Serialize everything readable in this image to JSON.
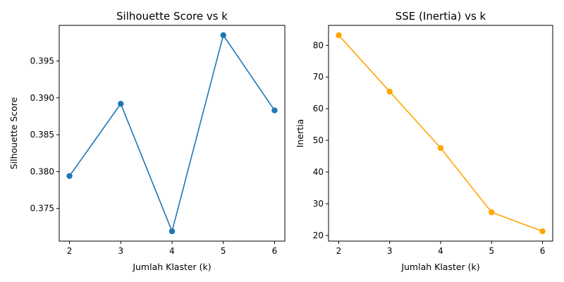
{
  "chart_data": [
    {
      "type": "line",
      "title": "Silhouette Score vs k",
      "xlabel": "Jumlah Klaster (k)",
      "ylabel": "Silhouette Score",
      "x": [
        2,
        3,
        4,
        5,
        6
      ],
      "series": [
        {
          "values": [
            0.3794,
            0.3892,
            0.3719,
            0.3985,
            0.3883
          ],
          "color": "#1f77b4",
          "marker": "circle"
        }
      ],
      "xlim": [
        1.8,
        6.2
      ],
      "ylim": [
        0.37057,
        0.39983
      ],
      "xticks": [
        2,
        3,
        4,
        5,
        6
      ],
      "xtick_labels": [
        "2",
        "3",
        "4",
        "5",
        "6"
      ],
      "yticks": [
        0.375,
        0.38,
        0.385,
        0.39,
        0.395
      ],
      "ytick_labels": [
        "0.375",
        "0.380",
        "0.385",
        "0.390",
        "0.395"
      ],
      "grid": false,
      "legend": "none"
    },
    {
      "type": "line",
      "title": "SSE (Inertia) vs k",
      "xlabel": "Jumlah Klaster (k)",
      "ylabel": "Inertia",
      "x": [
        2,
        3,
        4,
        5,
        6
      ],
      "series": [
        {
          "values": [
            83.2,
            65.4,
            47.6,
            27.3,
            21.3
          ],
          "color": "#ffa500",
          "marker": "circle"
        }
      ],
      "xlim": [
        1.8,
        6.2
      ],
      "ylim": [
        18.2,
        86.3
      ],
      "xticks": [
        2,
        3,
        4,
        5,
        6
      ],
      "xtick_labels": [
        "2",
        "3",
        "4",
        "5",
        "6"
      ],
      "yticks": [
        20,
        30,
        40,
        50,
        60,
        70,
        80
      ],
      "ytick_labels": [
        "20",
        "30",
        "40",
        "50",
        "60",
        "70",
        "80"
      ],
      "grid": false,
      "legend": "none"
    }
  ]
}
